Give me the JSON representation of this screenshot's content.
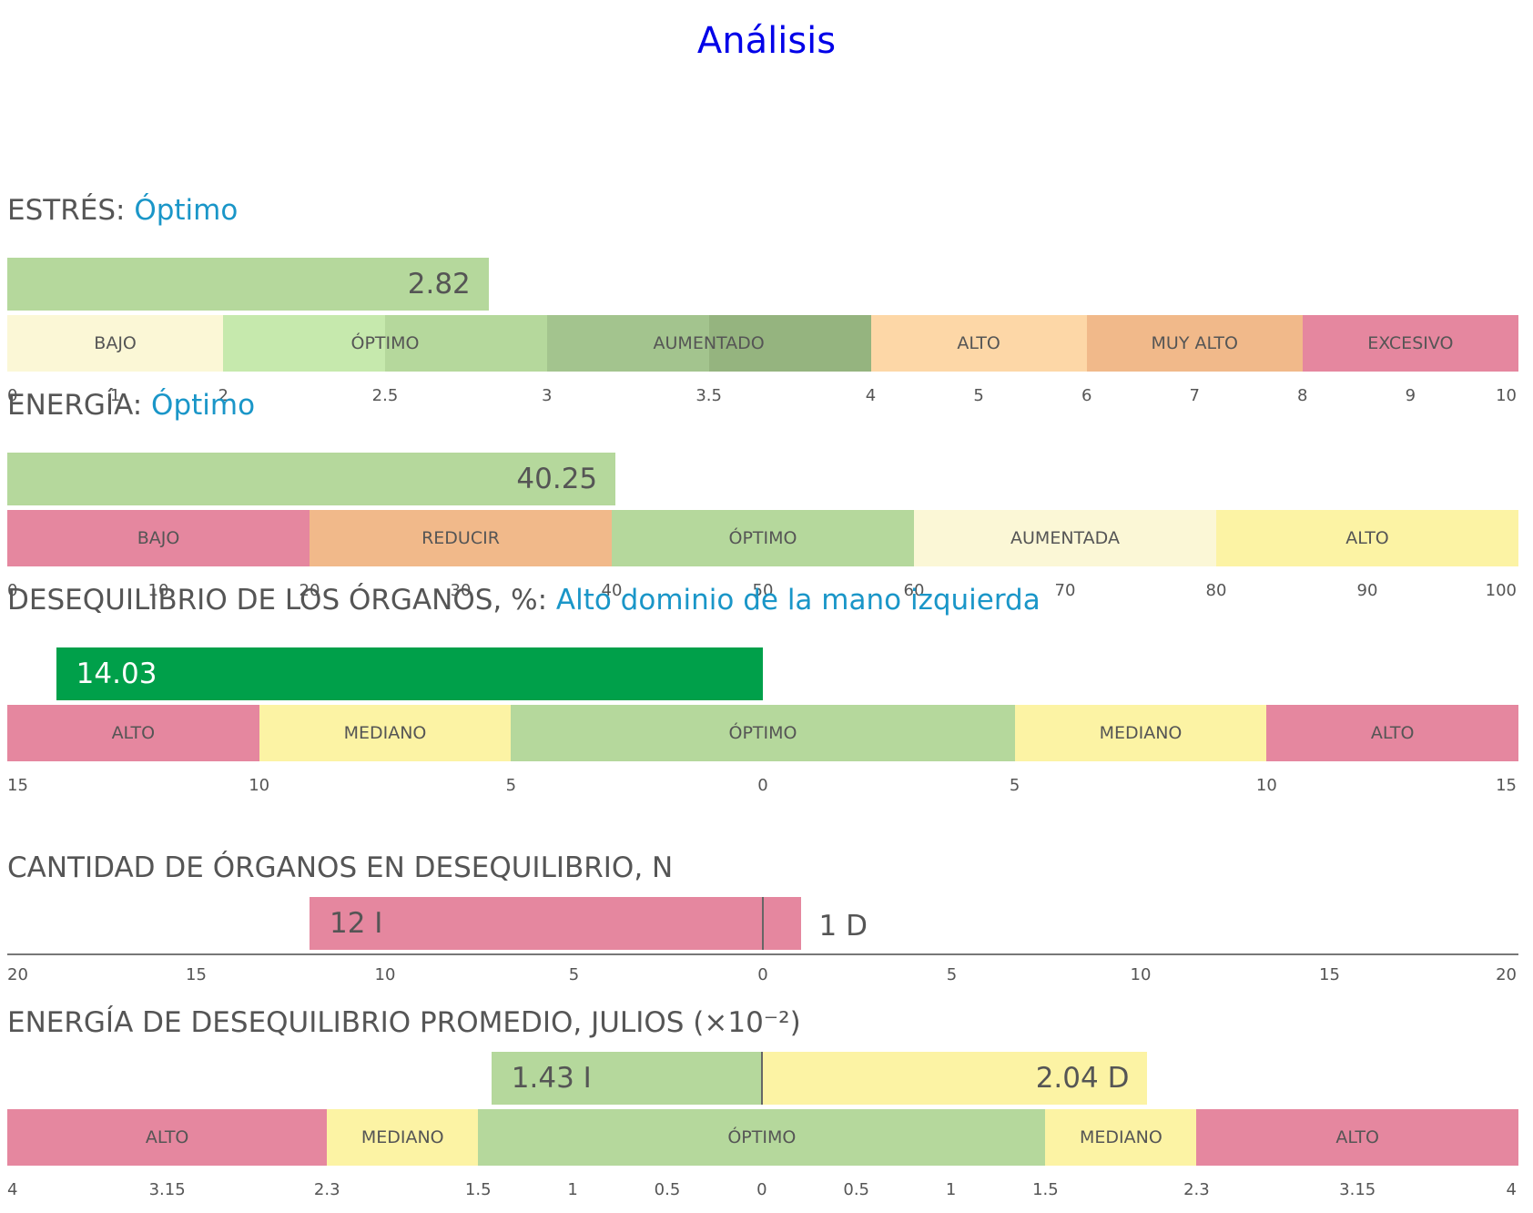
{
  "title": "Análisis",
  "colors": {
    "title": "#0000e8",
    "status": "#1a96c8",
    "text": "#555555"
  },
  "sections": {
    "stress": {
      "label": "ESTRÉS:",
      "status": "Óptimo",
      "value_label": "2.82"
    },
    "energy": {
      "label": "ENERGÍA:",
      "status": "Óptimo",
      "value_label": "40.25"
    },
    "imbalance": {
      "label": "DESEQUILIBRIO DE LOS ÓRGANOS, %:",
      "status": "Alto dominio de la mano izquierda",
      "value_label": "14.03"
    },
    "organ_count": {
      "label": "CANTIDAD DE ÓRGANOS EN DESEQUILIBRIO, N",
      "left_label": "12 I",
      "right_label": "1 D"
    },
    "avg_energy": {
      "label": "ENERGÍA DE DESEQUILIBRIO PROMEDIO, JULIOS (×10⁻²)",
      "left_label": "1.43 I",
      "right_label": "2.04 D"
    }
  },
  "chart_data": [
    {
      "type": "bar",
      "title": "ESTRÉS: Óptimo",
      "value": 2.82,
      "value_bar_color": "#b5d89c",
      "scale_ticks": [
        "0",
        "1",
        "2",
        "2.5",
        "3",
        "3.5",
        "4",
        "5",
        "6",
        "7",
        "8",
        "9",
        "10"
      ],
      "bands": [
        {
          "label": "BAJO",
          "from": 0,
          "to": 2,
          "color": "#fbf7d6"
        },
        {
          "label": "ÓPTIMO",
          "from": 2,
          "to": 3,
          "color": "#c6e9ad",
          "second_color": "#b5d89c"
        },
        {
          "label": "AUMENTADO",
          "from": 3,
          "to": 4,
          "color": "#a3c48e",
          "second_color": "#95b47f"
        },
        {
          "label": "ALTO",
          "from": 4,
          "to": 6,
          "color": "#fdd7a7"
        },
        {
          "label": "MUY ALTO",
          "from": 6,
          "to": 8,
          "color": "#f1b98a"
        },
        {
          "label": "EXCESIVO",
          "from": 8,
          "to": 10,
          "color": "#e5879f"
        }
      ]
    },
    {
      "type": "bar",
      "title": "ENERGÍA: Óptimo",
      "value": 40.25,
      "value_bar_color": "#b5d89c",
      "scale_ticks": [
        "0",
        "10",
        "20",
        "30",
        "40",
        "50",
        "60",
        "70",
        "80",
        "90",
        "100"
      ],
      "bands": [
        {
          "label": "BAJO",
          "from": 0,
          "to": 20,
          "color": "#e5879f"
        },
        {
          "label": "REDUCIR",
          "from": 20,
          "to": 40,
          "color": "#f1b98a"
        },
        {
          "label": "ÓPTIMO",
          "from": 40,
          "to": 60,
          "color": "#b5d89c"
        },
        {
          "label": "AUMENTADA",
          "from": 60,
          "to": 80,
          "color": "#fbf7d6"
        },
        {
          "label": "ALTO",
          "from": 80,
          "to": 100,
          "color": "#fcf3a4"
        }
      ]
    },
    {
      "type": "bar",
      "title": "DESEQUILIBRIO DE LOS ÓRGANOS, %: Alto dominio de la mano izquierda",
      "value": 14.03,
      "side": "left",
      "value_bar_color": "#00a04a",
      "scale_ticks": [
        "15",
        "10",
        "5",
        "0",
        "5",
        "10",
        "15"
      ],
      "bands": [
        {
          "label": "ALTO",
          "from": -15,
          "to": -10,
          "color": "#e5879f"
        },
        {
          "label": "MEDIANO",
          "from": -10,
          "to": -5,
          "color": "#fcf3a4"
        },
        {
          "label": "ÓPTIMO",
          "from": -5,
          "to": 5,
          "color": "#b5d89c"
        },
        {
          "label": "MEDIANO",
          "from": 5,
          "to": 10,
          "color": "#fcf3a4"
        },
        {
          "label": "ALTO",
          "from": 10,
          "to": 15,
          "color": "#e5879f"
        }
      ]
    },
    {
      "type": "bar",
      "title": "CANTIDAD DE ÓRGANOS EN DESEQUILIBRIO, N",
      "left_value": 12,
      "right_value": 1,
      "bar_color": "#e5879f",
      "scale_ticks": [
        "20",
        "15",
        "10",
        "5",
        "0",
        "5",
        "10",
        "15",
        "20"
      ]
    },
    {
      "type": "bar",
      "title": "ENERGÍA DE DESEQUILIBRIO PROMEDIO, JULIOS (×10⁻²)",
      "left_value": 1.43,
      "right_value": 2.04,
      "left_color": "#b5d89c",
      "right_color": "#fcf3a4",
      "scale_ticks": [
        "4",
        "3.15",
        "2.3",
        "1.5",
        "1",
        "0.5",
        "0",
        "0.5",
        "1",
        "1.5",
        "2.3",
        "3.15",
        "4"
      ],
      "bands": [
        {
          "label": "ALTO",
          "from": -4,
          "to": -2.3,
          "color": "#e5879f"
        },
        {
          "label": "MEDIANO",
          "from": -2.3,
          "to": -1.5,
          "color": "#fcf3a4"
        },
        {
          "label": "ÓPTIMO",
          "from": -1.5,
          "to": 1.5,
          "color": "#b5d89c"
        },
        {
          "label": "MEDIANO",
          "from": 1.5,
          "to": 2.3,
          "color": "#fcf3a4"
        },
        {
          "label": "ALTO",
          "from": 2.3,
          "to": 4,
          "color": "#e5879f"
        }
      ]
    }
  ]
}
